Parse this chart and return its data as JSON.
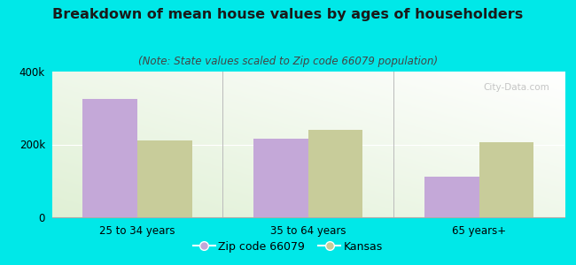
{
  "title": "Breakdown of mean house values by ages of householders",
  "subtitle": "(Note: State values scaled to Zip code 66079 population)",
  "categories": [
    "25 to 34 years",
    "35 to 64 years",
    "65 years+"
  ],
  "series": [
    {
      "label": "Zip code 66079",
      "values": [
        325000,
        215000,
        112000
      ],
      "color": "#c4a8d8"
    },
    {
      "label": "Kansas",
      "values": [
        212000,
        240000,
        207000
      ],
      "color": "#c8cc9a"
    }
  ],
  "ylim": [
    0,
    400000
  ],
  "yticks": [
    0,
    200000,
    400000
  ],
  "ytick_labels": [
    "0",
    "200k",
    "400k"
  ],
  "bar_width": 0.32,
  "outer_bg": "#00e8e8",
  "plot_bg_top_left": "#e8f5e0",
  "plot_bg_top_right": "#f8fdf5",
  "plot_bg_bottom": "#dff0d5",
  "title_fontsize": 11.5,
  "subtitle_fontsize": 8.5,
  "tick_fontsize": 8.5,
  "legend_fontsize": 9,
  "watermark": "City-Data.com"
}
